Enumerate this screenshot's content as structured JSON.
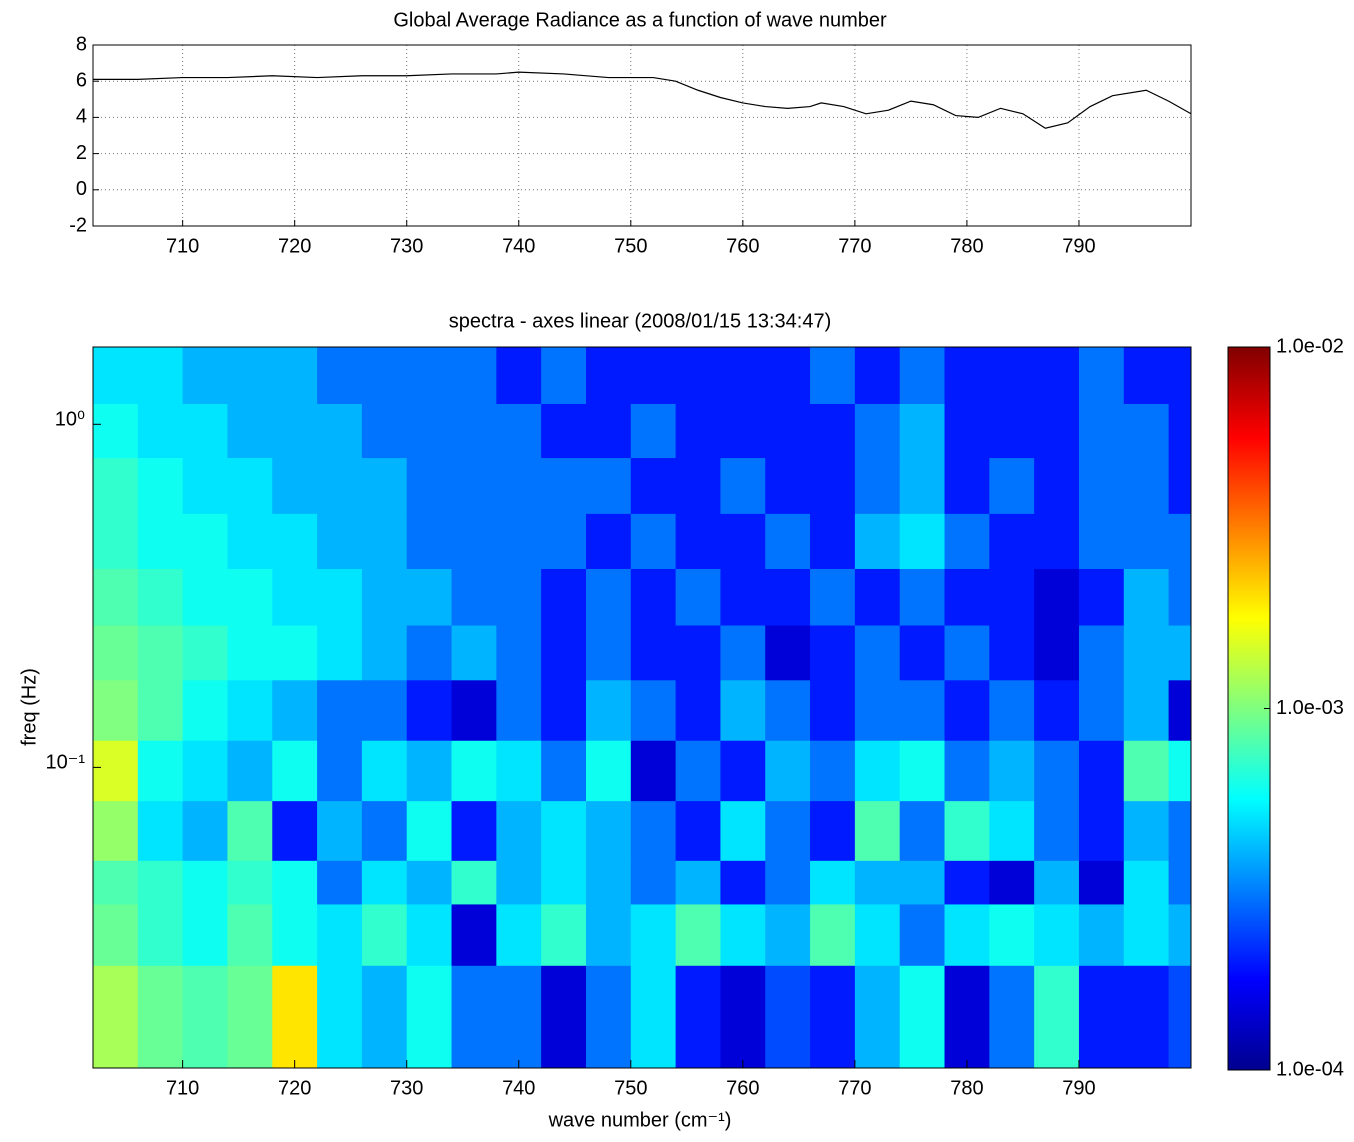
{
  "chart_data": [
    {
      "type": "line",
      "title": "Global Average Radiance as a function of wave number",
      "x": [
        702,
        706,
        710,
        714,
        718,
        722,
        726,
        730,
        734,
        738,
        740,
        744,
        748,
        752,
        754,
        756,
        758,
        760,
        762,
        764,
        766,
        767,
        769,
        771,
        773,
        775,
        777,
        779,
        781,
        783,
        785,
        787,
        789,
        791,
        793,
        796,
        798,
        800
      ],
      "series": [
        {
          "color": "#000000",
          "values": [
            6.1,
            6.1,
            6.2,
            6.2,
            6.3,
            6.2,
            6.3,
            6.3,
            6.4,
            6.4,
            6.5,
            6.4,
            6.2,
            6.2,
            6.0,
            5.5,
            5.1,
            4.8,
            4.6,
            4.5,
            4.6,
            4.8,
            4.6,
            4.2,
            4.4,
            4.9,
            4.7,
            4.1,
            4.0,
            4.5,
            4.2,
            3.4,
            3.7,
            4.6,
            5.2,
            5.5,
            4.9,
            4.2
          ]
        }
      ],
      "xlim": [
        702,
        800
      ],
      "xticks": [
        710,
        720,
        730,
        740,
        750,
        760,
        770,
        780,
        790
      ],
      "ylim": [
        -2,
        8
      ],
      "yticks": [
        -2,
        0,
        2,
        4,
        6,
        8
      ],
      "grid": true
    },
    {
      "type": "heatmap",
      "title": "spectra - axes linear (2008/01/15 13:34:47)",
      "xlabel": "wave number (cm⁻¹)",
      "ylabel": "freq (Hz)",
      "x_bins": [
        702,
        706,
        710,
        714,
        718,
        722,
        726,
        730,
        734,
        738,
        742,
        746,
        750,
        754,
        758,
        762,
        766,
        770,
        774,
        778,
        782,
        786,
        790,
        794,
        798,
        800
      ],
      "y_bins": [
        0.0133,
        0.0265,
        0.04,
        0.0536,
        0.08,
        0.12,
        0.18,
        0.26,
        0.38,
        0.55,
        0.8,
        1.15,
        1.68
      ],
      "xlim": [
        702,
        800
      ],
      "xticks": [
        710,
        720,
        730,
        740,
        750,
        760,
        770,
        780,
        790
      ],
      "ylim": [
        0.0133,
        1.68
      ],
      "ylog": true,
      "yticks": [
        {
          "value": 0.1,
          "label": "10⁻¹"
        },
        {
          "value": 1,
          "label": "10⁰"
        }
      ],
      "colormap": "jet",
      "clog": true,
      "clim": [
        0.0001,
        0.01
      ],
      "cticks": [
        {
          "value": 0.0001,
          "label": "1.0e-04"
        },
        {
          "value": 0.001,
          "label": "1.0e-03"
        },
        {
          "value": 0.01,
          "label": "1.0e-02"
        }
      ],
      "values": [
        [
          0.0012,
          0.0009,
          0.0008,
          0.0009,
          0.002,
          0.0005,
          0.0004,
          0.0006,
          0.0003,
          0.0003,
          0.00015,
          0.0003,
          0.0005,
          0.0002,
          0.00015,
          0.00025,
          0.0002,
          0.0004,
          0.0006,
          0.00015,
          0.0003,
          0.0007,
          0.0002,
          0.0002,
          0.00025
        ],
        [
          0.0009,
          0.0007,
          0.0006,
          0.0008,
          0.0006,
          0.0005,
          0.0007,
          0.0005,
          0.00015,
          0.0005,
          0.0007,
          0.0004,
          0.0005,
          0.0008,
          0.0005,
          0.0004,
          0.0008,
          0.0005,
          0.0003,
          0.0005,
          0.0006,
          0.0005,
          0.0004,
          0.0005,
          0.0004
        ],
        [
          0.0008,
          0.0007,
          0.0006,
          0.0007,
          0.0006,
          0.0003,
          0.0005,
          0.0004,
          0.0007,
          0.0004,
          0.0005,
          0.0004,
          0.0003,
          0.0004,
          0.0002,
          0.0003,
          0.0005,
          0.0004,
          0.0004,
          0.0002,
          0.00015,
          0.0004,
          0.00015,
          0.0005,
          0.0003
        ],
        [
          0.0011,
          0.0005,
          0.0004,
          0.0008,
          0.0002,
          0.0004,
          0.0003,
          0.0006,
          0.0002,
          0.0004,
          0.0005,
          0.0004,
          0.0003,
          0.0002,
          0.0005,
          0.0003,
          0.0002,
          0.0008,
          0.0003,
          0.0007,
          0.0005,
          0.0003,
          0.0002,
          0.0004,
          0.0003
        ],
        [
          0.0015,
          0.0006,
          0.0005,
          0.0004,
          0.0006,
          0.0003,
          0.0005,
          0.0004,
          0.0006,
          0.0005,
          0.0003,
          0.0006,
          0.00015,
          0.0003,
          0.0002,
          0.0004,
          0.0003,
          0.0005,
          0.0006,
          0.0003,
          0.0004,
          0.0003,
          0.0002,
          0.0008,
          0.0006
        ],
        [
          0.001,
          0.0008,
          0.0006,
          0.0005,
          0.0004,
          0.0003,
          0.0003,
          0.0002,
          0.00015,
          0.0003,
          0.0002,
          0.0004,
          0.0003,
          0.0002,
          0.0004,
          0.0003,
          0.0002,
          0.0003,
          0.0003,
          0.0002,
          0.0003,
          0.0002,
          0.0003,
          0.0004,
          0.00015
        ],
        [
          0.0009,
          0.0008,
          0.0007,
          0.0006,
          0.0006,
          0.0005,
          0.0004,
          0.0003,
          0.0004,
          0.0003,
          0.0002,
          0.0003,
          0.0002,
          0.0002,
          0.0003,
          0.00015,
          0.0002,
          0.0003,
          0.0002,
          0.0003,
          0.0002,
          0.00015,
          0.0003,
          0.0004,
          0.0004
        ],
        [
          0.0008,
          0.0007,
          0.0006,
          0.0006,
          0.0005,
          0.0005,
          0.0004,
          0.0004,
          0.0003,
          0.0003,
          0.0002,
          0.0003,
          0.0002,
          0.0003,
          0.0002,
          0.0002,
          0.0003,
          0.0002,
          0.0003,
          0.0002,
          0.0002,
          0.00015,
          0.0002,
          0.0004,
          0.0003
        ],
        [
          0.0007,
          0.0006,
          0.0006,
          0.0005,
          0.0005,
          0.0004,
          0.0004,
          0.0003,
          0.0003,
          0.0003,
          0.0003,
          0.0002,
          0.0003,
          0.0002,
          0.0002,
          0.0003,
          0.0002,
          0.0004,
          0.0005,
          0.0003,
          0.0002,
          0.0002,
          0.0003,
          0.0003,
          0.0003
        ],
        [
          0.0007,
          0.0006,
          0.0005,
          0.0005,
          0.0004,
          0.0004,
          0.0004,
          0.0003,
          0.0003,
          0.0003,
          0.0003,
          0.0003,
          0.0002,
          0.0002,
          0.0003,
          0.0002,
          0.0002,
          0.0003,
          0.0004,
          0.0002,
          0.0003,
          0.0002,
          0.0003,
          0.0003,
          0.0002
        ],
        [
          0.0006,
          0.0005,
          0.0005,
          0.0004,
          0.0004,
          0.0004,
          0.0003,
          0.0003,
          0.0003,
          0.0003,
          0.0002,
          0.0002,
          0.0003,
          0.0002,
          0.0002,
          0.0002,
          0.0002,
          0.0003,
          0.0004,
          0.0002,
          0.0002,
          0.0002,
          0.0003,
          0.0003,
          0.0002
        ],
        [
          0.0005,
          0.0005,
          0.0004,
          0.0004,
          0.0004,
          0.0003,
          0.0003,
          0.0003,
          0.0003,
          0.0002,
          0.0003,
          0.0002,
          0.0002,
          0.0002,
          0.0002,
          0.0002,
          0.0003,
          0.0002,
          0.0003,
          0.0002,
          0.0002,
          0.0002,
          0.0003,
          0.0002,
          0.0002
        ]
      ]
    }
  ]
}
